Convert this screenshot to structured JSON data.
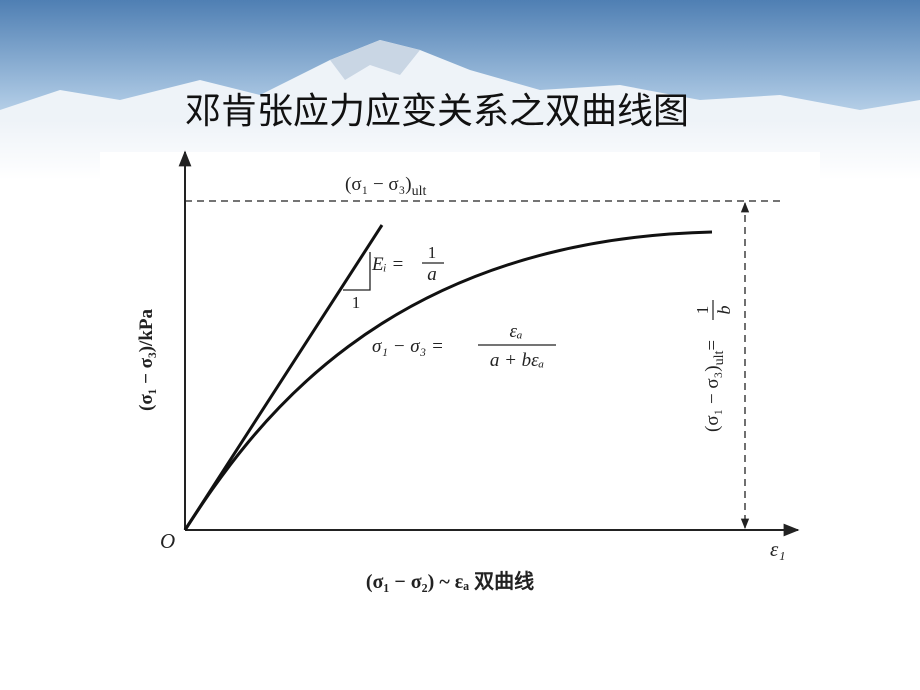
{
  "title": "邓肯张应力应变关系之双曲线图",
  "diagram": {
    "asymptote_label": {
      "text": "(σ₁ − σ₃)",
      "sub": "ult"
    },
    "tangent_label": {
      "lhs": "Eᵢ =",
      "numerator": "1",
      "denominator": "a"
    },
    "triangle_label": "1",
    "curve_label": {
      "lhs": "σ₁ − σ₃ =",
      "numerator": "εₐ",
      "denominator": "a + bεₐ"
    },
    "y_axis_label": "(σ₁ − σ₃)/kPa",
    "right_label": {
      "text": "(σ₁ − σ₃)",
      "sub": "ult",
      "eq": "=",
      "numerator": "1",
      "denominator": "b"
    },
    "origin": "O",
    "x_axis_label": "ε₁",
    "caption": "(σ₁ − σ₂) ~ εₐ 双曲线"
  }
}
